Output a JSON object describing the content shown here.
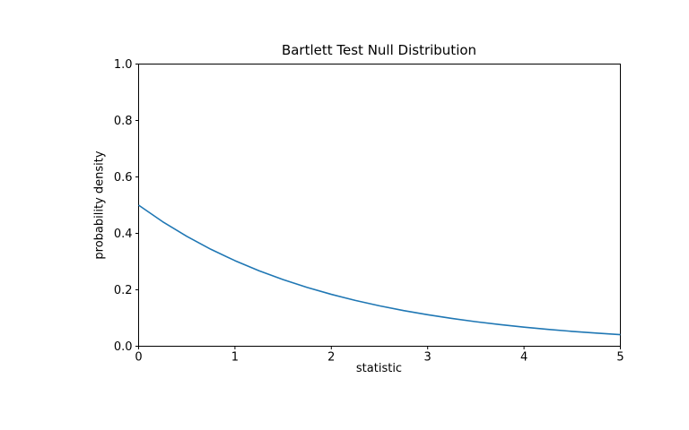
{
  "chart_data": {
    "type": "line",
    "title": "Bartlett Test Null Distribution",
    "xlabel": "statistic",
    "ylabel": "probability density",
    "xlim": [
      0,
      5
    ],
    "ylim": [
      0,
      1
    ],
    "xticks": {
      "values": [
        0,
        1,
        2,
        3,
        4,
        5
      ],
      "labels": [
        "0",
        "1",
        "2",
        "3",
        "4",
        "5"
      ]
    },
    "yticks": {
      "values": [
        0,
        0.2,
        0.4,
        0.6,
        0.8,
        1.0
      ],
      "labels": [
        "0.0",
        "0.2",
        "0.4",
        "0.6",
        "0.8",
        "1.0"
      ]
    },
    "grid": false,
    "background": "#ffffff",
    "line_color": "#1f77b4",
    "axis_color": "#000000",
    "series": [
      {
        "x": [
          0,
          0.25,
          0.5,
          0.75,
          1,
          1.25,
          1.5,
          1.75,
          2,
          2.25,
          2.5,
          2.75,
          3,
          3.25,
          3.5,
          3.75,
          4,
          4.25,
          4.5,
          4.75,
          5
        ],
        "y": [
          0.5,
          0.4412,
          0.3894,
          0.3436,
          0.3033,
          0.2676,
          0.2362,
          0.2084,
          0.1839,
          0.1623,
          0.1433,
          0.1264,
          0.1116,
          0.0985,
          0.0869,
          0.0767,
          0.0677,
          0.0597,
          0.0527,
          0.0465,
          0.041
        ]
      }
    ]
  }
}
